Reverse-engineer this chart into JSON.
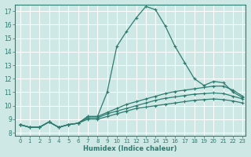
{
  "xlabel": "Humidex (Indice chaleur)",
  "ylabel": "",
  "background_color": "#cde8e5",
  "grid_color": "#ffffff",
  "line_color": "#2e7b70",
  "xlim_min": -0.5,
  "xlim_max": 23.3,
  "ylim_min": 7.8,
  "ylim_max": 17.5,
  "xticks": [
    0,
    1,
    2,
    3,
    4,
    5,
    6,
    7,
    8,
    9,
    10,
    11,
    12,
    13,
    14,
    15,
    16,
    17,
    18,
    19,
    20,
    21,
    22,
    23
  ],
  "yticks": [
    8,
    9,
    10,
    11,
    12,
    13,
    14,
    15,
    16,
    17
  ],
  "series": [
    {
      "x": [
        0,
        1,
        2,
        3,
        4,
        5,
        6,
        7,
        8,
        9,
        10,
        11,
        12,
        13,
        14,
        15,
        16,
        17,
        18,
        19,
        20,
        21,
        22,
        23
      ],
      "y": [
        8.6,
        8.4,
        8.4,
        8.8,
        8.4,
        8.6,
        8.7,
        9.2,
        9.2,
        11.0,
        14.4,
        15.5,
        16.5,
        17.35,
        17.1,
        15.9,
        14.4,
        13.2,
        12.0,
        11.5,
        11.8,
        11.7,
        11.0,
        10.6
      ]
    },
    {
      "x": [
        0,
        1,
        2,
        3,
        4,
        5,
        6,
        7,
        8,
        9,
        10,
        11,
        12,
        13,
        14,
        15,
        16,
        17,
        18,
        19,
        20,
        21,
        22,
        23
      ],
      "y": [
        8.6,
        8.4,
        8.4,
        8.8,
        8.4,
        8.6,
        8.7,
        9.2,
        9.2,
        9.5,
        9.8,
        10.1,
        10.3,
        10.5,
        10.7,
        10.9,
        11.05,
        11.15,
        11.25,
        11.35,
        11.45,
        11.45,
        11.15,
        10.7
      ]
    },
    {
      "x": [
        0,
        1,
        2,
        3,
        4,
        5,
        6,
        7,
        8,
        9,
        10,
        11,
        12,
        13,
        14,
        15,
        16,
        17,
        18,
        19,
        20,
        21,
        22,
        23
      ],
      "y": [
        8.6,
        8.4,
        8.4,
        8.8,
        8.4,
        8.6,
        8.7,
        9.1,
        9.1,
        9.4,
        9.6,
        9.8,
        10.0,
        10.2,
        10.4,
        10.55,
        10.65,
        10.75,
        10.85,
        10.9,
        10.95,
        10.9,
        10.7,
        10.5
      ]
    },
    {
      "x": [
        0,
        1,
        2,
        3,
        4,
        5,
        6,
        7,
        8,
        9,
        10,
        11,
        12,
        13,
        14,
        15,
        16,
        17,
        18,
        19,
        20,
        21,
        22,
        23
      ],
      "y": [
        8.6,
        8.4,
        8.4,
        8.8,
        8.4,
        8.6,
        8.7,
        9.0,
        9.0,
        9.2,
        9.4,
        9.6,
        9.8,
        9.9,
        10.0,
        10.1,
        10.2,
        10.3,
        10.4,
        10.45,
        10.5,
        10.45,
        10.35,
        10.2
      ]
    }
  ]
}
